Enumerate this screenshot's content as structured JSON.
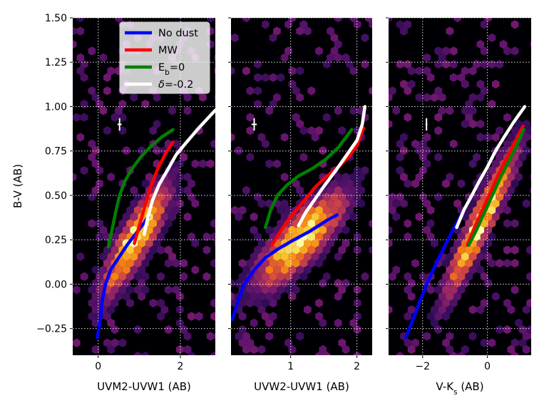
{
  "figure": {
    "ylabel": "B-V (AB)"
  },
  "chart_data": [
    {
      "type": "scatter",
      "panel": "left",
      "xlabel": "UVM2-UVW1 (AB)",
      "xlim": [
        -0.62,
        2.85
      ],
      "ylim": [
        -0.4,
        1.5
      ],
      "xticks": [
        0,
        2
      ],
      "yticks": [
        -0.25,
        0.0,
        0.25,
        0.5,
        0.75,
        1.0,
        1.25,
        1.5
      ],
      "ytick_labels": [
        "−0.25",
        "0.00",
        "0.25",
        "0.50",
        "0.75",
        "1.00",
        "1.25",
        "1.50"
      ],
      "density": {
        "center": [
          0.9,
          0.25
        ],
        "slope": 0.34,
        "perp_sigma": 0.1,
        "along_sigma": 0.55
      },
      "error_bar": {
        "x": 0.52,
        "y": 0.9,
        "xerr": 0.05,
        "yerr": 0.035
      },
      "series": [
        {
          "name": "No dust",
          "color": "#0000ff",
          "x": [
            -0.02,
            0.05,
            0.1,
            0.18,
            0.3,
            0.5,
            0.7,
            0.9,
            1.1,
            1.22
          ],
          "y": [
            -0.3,
            -0.2,
            -0.09,
            0.0,
            0.08,
            0.15,
            0.22,
            0.28,
            0.34,
            0.38
          ]
        },
        {
          "name": "MW",
          "color": "#ff0000",
          "x": [
            0.88,
            0.95,
            1.05,
            1.15,
            1.28,
            1.45,
            1.65,
            1.82
          ],
          "y": [
            0.23,
            0.29,
            0.37,
            0.45,
            0.55,
            0.65,
            0.74,
            0.8
          ]
        },
        {
          "name": "E_b=0",
          "color": "#008000",
          "x": [
            0.25,
            0.33,
            0.42,
            0.52,
            0.65,
            0.82,
            1.05,
            1.3,
            1.55,
            1.82
          ],
          "y": [
            0.21,
            0.3,
            0.4,
            0.5,
            0.58,
            0.65,
            0.72,
            0.78,
            0.83,
            0.87
          ]
        },
        {
          "name": "δ=-0.2",
          "color": "#ffffff",
          "x": [
            1.12,
            1.2,
            1.32,
            1.48,
            1.68,
            1.9,
            2.15,
            2.45,
            2.85
          ],
          "y": [
            0.28,
            0.37,
            0.47,
            0.56,
            0.64,
            0.73,
            0.8,
            0.88,
            0.98
          ]
        }
      ]
    },
    {
      "type": "scatter",
      "panel": "middle",
      "xlabel": "UVW2-UVW1 (AB)",
      "xlim": [
        0.1,
        2.23
      ],
      "ylim": [
        -0.4,
        1.5
      ],
      "xticks": [
        1,
        2
      ],
      "density": {
        "center": [
          1.15,
          0.25
        ],
        "slope": 0.34,
        "perp_sigma": 0.1,
        "along_sigma": 0.45
      },
      "error_bar": {
        "x": 0.45,
        "y": 0.9,
        "xerr": 0.04,
        "yerr": 0.035
      },
      "series": [
        {
          "name": "No dust",
          "color": "#0000ff",
          "x": [
            0.12,
            0.2,
            0.3,
            0.45,
            0.62,
            0.82,
            1.05,
            1.3,
            1.55,
            1.7
          ],
          "y": [
            -0.2,
            -0.1,
            0.0,
            0.08,
            0.15,
            0.2,
            0.25,
            0.3,
            0.36,
            0.39
          ]
        },
        {
          "name": "MW",
          "color": "#ff0000",
          "x": [
            0.72,
            0.85,
            1.0,
            1.18,
            1.38,
            1.55,
            1.72,
            1.88,
            2.0,
            2.1
          ],
          "y": [
            0.22,
            0.3,
            0.38,
            0.46,
            0.55,
            0.61,
            0.66,
            0.72,
            0.78,
            0.88
          ]
        },
        {
          "name": "E_b=0",
          "color": "#008000",
          "x": [
            0.62,
            0.7,
            0.8,
            0.95,
            1.12,
            1.32,
            1.52,
            1.72,
            1.92
          ],
          "y": [
            0.32,
            0.42,
            0.5,
            0.56,
            0.61,
            0.65,
            0.7,
            0.77,
            0.87
          ]
        },
        {
          "name": "δ=-0.2",
          "color": "#ffffff",
          "x": [
            1.12,
            1.22,
            1.35,
            1.5,
            1.68,
            1.85,
            2.0,
            2.08,
            2.12
          ],
          "y": [
            0.33,
            0.4,
            0.47,
            0.55,
            0.64,
            0.73,
            0.81,
            0.9,
            1.0
          ]
        }
      ]
    },
    {
      "type": "scatter",
      "panel": "right",
      "xlabel": "V-K_s (AB)",
      "xlim": [
        -3.05,
        1.35
      ],
      "ylim": [
        -0.4,
        1.5
      ],
      "xticks": [
        -2,
        0
      ],
      "xtick_labels": [
        "−2",
        "0"
      ],
      "density": {
        "center": [
          -0.2,
          0.35
        ],
        "slope": 0.36,
        "perp_sigma": 0.09,
        "along_sigma": 0.75
      },
      "error_bar": {
        "x": -1.88,
        "y": 0.9,
        "xerr": 0.03,
        "yerr": 0.035
      },
      "series": [
        {
          "name": "No dust",
          "color": "#0000ff",
          "x": [
            -2.52,
            -2.3,
            -2.05,
            -1.8,
            -1.55,
            -1.3,
            -1.05,
            -0.8
          ],
          "y": [
            -0.3,
            -0.2,
            -0.08,
            0.03,
            0.13,
            0.22,
            0.31,
            0.39
          ]
        },
        {
          "name": "MW",
          "color": "#ff0000",
          "x": [
            -0.62,
            -0.4,
            -0.15,
            0.1,
            0.35,
            0.6,
            0.85,
            1.1
          ],
          "y": [
            0.22,
            0.32,
            0.42,
            0.52,
            0.62,
            0.71,
            0.8,
            0.89
          ]
        },
        {
          "name": "E_b=0",
          "color": "#008000",
          "x": [
            -0.58,
            -0.35,
            -0.1,
            0.15,
            0.4,
            0.65,
            0.9,
            1.12
          ],
          "y": [
            0.22,
            0.3,
            0.4,
            0.5,
            0.6,
            0.69,
            0.78,
            0.87
          ]
        },
        {
          "name": "δ=-0.2",
          "color": "#ffffff",
          "x": [
            -0.95,
            -0.72,
            -0.48,
            -0.25,
            0.0,
            0.25,
            0.52,
            0.8,
            1.15
          ],
          "y": [
            0.32,
            0.42,
            0.5,
            0.58,
            0.66,
            0.75,
            0.83,
            0.91,
            1.0
          ]
        }
      ]
    }
  ],
  "legend": {
    "location": "top-left of middle panel",
    "entries": [
      {
        "label": "No dust",
        "color": "#0000ff"
      },
      {
        "label": "MW",
        "color": "#ff0000"
      },
      {
        "label": "E",
        "sub": "b",
        "tail": "=0",
        "color": "#008000"
      },
      {
        "label": "δ",
        "tail": "=-0.2",
        "color": "#ffffff",
        "italic_head": true
      }
    ]
  },
  "colors": {
    "background": "#000004",
    "grid": "#ffffff",
    "colormap": "inferno"
  }
}
